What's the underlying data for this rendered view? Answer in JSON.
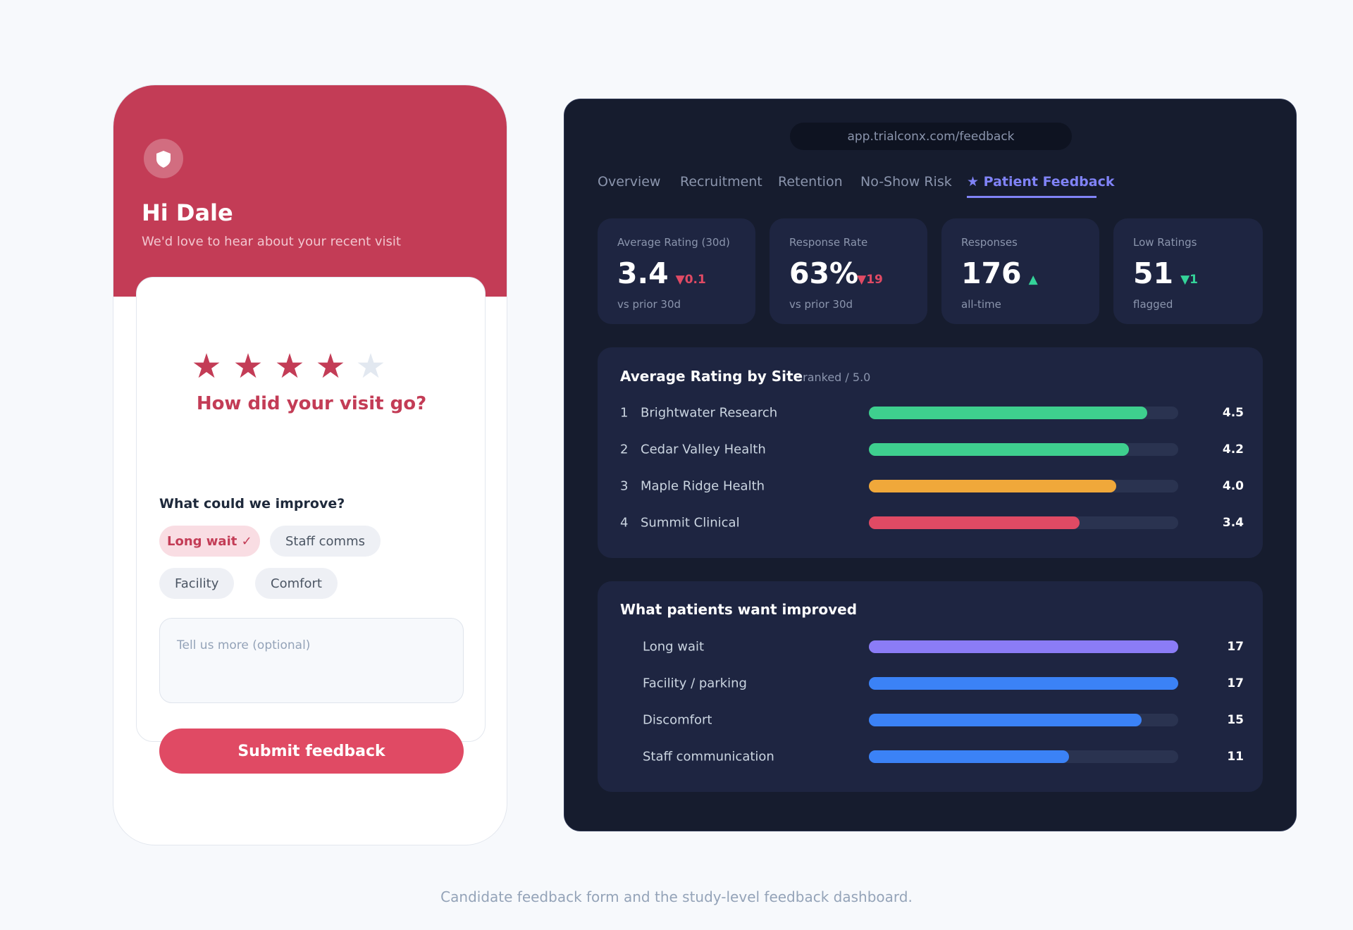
{
  "form": {
    "greeting": "Hi Dale",
    "subtitle": "We'd love to hear about your recent visit",
    "question": "How did your visit go?",
    "improve_title": "What could we improve?",
    "chips": [
      {
        "label": "Long wait ✓",
        "selected": true
      },
      {
        "label": "Staff comms",
        "selected": false
      },
      {
        "label": "Facility",
        "selected": false
      },
      {
        "label": "Comfort",
        "selected": false
      }
    ],
    "placeholder": "Tell us more (optional)",
    "submit": "Submit feedback"
  },
  "dashboard": {
    "url": "app.trialconx.com/feedback",
    "tabs": [
      "Overview",
      "Recruitment",
      "Retention",
      "No-Show Risk",
      "★ Patient Feedback"
    ],
    "active_tab": 4,
    "kpis": [
      {
        "label": "Average Rating (30d)",
        "value": "3.4",
        "delta": "▼0.1",
        "delta_color": "#e04a64",
        "note": "vs prior 30d"
      },
      {
        "label": "Response Rate",
        "value": "63%",
        "delta": "▼19",
        "delta_color": "#e04a64",
        "note": "vs prior 30d"
      },
      {
        "label": "Responses",
        "value": "176",
        "delta": "▲",
        "delta_color": "#34d399",
        "note": "all-time"
      },
      {
        "label": "Low Ratings",
        "value": "51",
        "delta": "▼1",
        "delta_color": "#34d399",
        "note": "flagged"
      }
    ],
    "site_ratings": {
      "title": "Average Rating by Site",
      "scale": {
        "value": 5,
        "label": "ranked / 5.0"
      },
      "ranks": [
        "1",
        "2",
        "3",
        "4"
      ],
      "names": [
        "Brightwater Research",
        "Cedar Valley Health",
        "Maple Ridge Health",
        "Summit Clinical"
      ],
      "values": [
        4.5,
        4.2,
        4.0,
        3.4
      ],
      "value_labels": [
        "4.5",
        "4.2",
        "4.0",
        "3.4"
      ],
      "colors": [
        "#3ecf8e",
        "#3ecf8e",
        "#f0a83a",
        "#e04a64"
      ]
    },
    "improvements": {
      "title": "What patients want improved",
      "names": [
        "Long wait",
        "Facility / parking",
        "Discomfort",
        "Staff communication"
      ],
      "values": [
        17,
        17,
        15,
        11
      ],
      "colors": [
        "#8b7cf6",
        "#3b82f6",
        "#3b82f6",
        "#3b82f6"
      ]
    }
  },
  "caption": "Candidate feedback form and the study-level feedback dashboard."
}
